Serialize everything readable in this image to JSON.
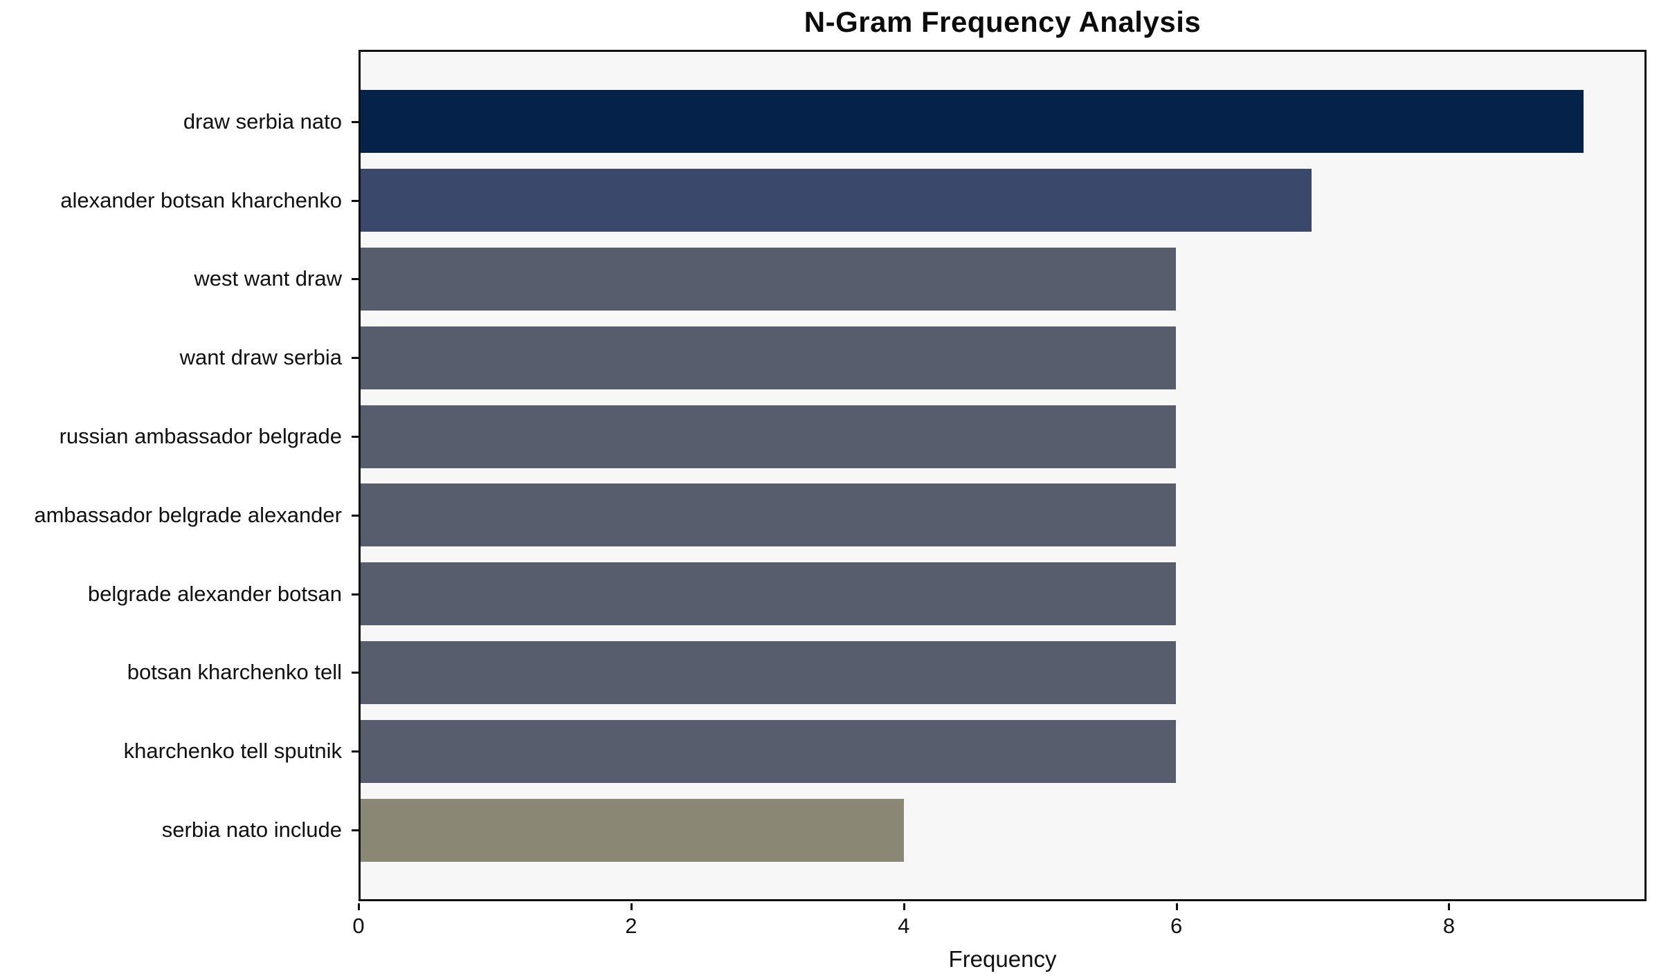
{
  "chart_data": {
    "type": "bar",
    "orientation": "horizontal",
    "title": "N-Gram Frequency Analysis",
    "xlabel": "Frequency",
    "ylabel": "",
    "categories": [
      "draw serbia nato",
      "alexander botsan kharchenko",
      "west want draw",
      "want draw serbia",
      "russian ambassador belgrade",
      "ambassador belgrade alexander",
      "belgrade alexander botsan",
      "botsan kharchenko tell",
      "kharchenko tell sputnik",
      "serbia nato include"
    ],
    "values": [
      9,
      7,
      6,
      6,
      6,
      6,
      6,
      6,
      6,
      4
    ],
    "bar_colors": [
      "#05224a",
      "#3a486b",
      "#575d6d",
      "#575d6d",
      "#575d6d",
      "#575d6d",
      "#575d6d",
      "#575d6d",
      "#575d6d",
      "#8a8775"
    ],
    "xticks": [
      0,
      2,
      4,
      6,
      8
    ],
    "xtick_labels": [
      "0",
      "2",
      "4",
      "6",
      "8"
    ],
    "xlim": [
      0,
      9.45
    ],
    "grid": false,
    "legend": false,
    "plot_background": "#f7f7f8",
    "figure_background": "#ffffff",
    "spine_color": "#0f0f0f"
  }
}
